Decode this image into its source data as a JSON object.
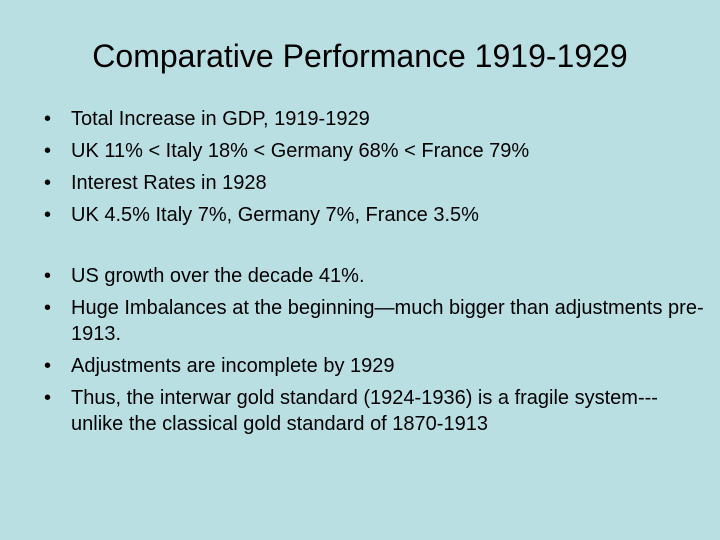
{
  "slide": {
    "title": "Comparative Performance 1919-1929",
    "bullet_glyph": "•",
    "group1": [
      "Total Increase in GDP, 1919-1929",
      "UK 11% < Italy 18% < Germany 68% < France 79%",
      "Interest Rates in 1928",
      "UK 4.5%  Italy 7%, Germany 7%, France 3.5%"
    ],
    "group2": [
      "US growth over the decade 41%.",
      "Huge Imbalances at the beginning—much bigger than adjustments pre-1913.",
      "Adjustments are incomplete by 1929",
      "Thus, the interwar gold standard (1924-1936) is a fragile system---unlike the classical gold standard of 1870-1913"
    ]
  },
  "colors": {
    "background": "#b9dfe3",
    "text": "#000000"
  }
}
